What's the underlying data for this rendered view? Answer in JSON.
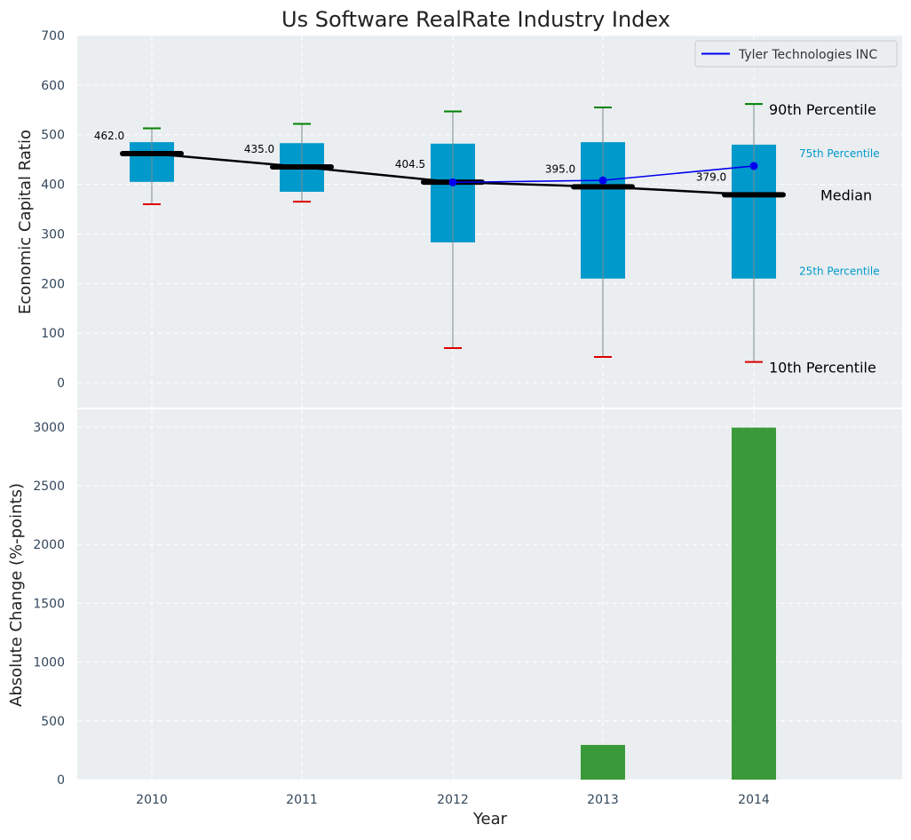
{
  "chart_data": [
    {
      "type": "box",
      "title": "Us Software RealRate Industry Index",
      "ylabel": "Economic Capital Ratio",
      "ylim": [
        -50,
        700
      ],
      "yticks": [
        0,
        100,
        200,
        300,
        400,
        500,
        600,
        700
      ],
      "grid": true,
      "legend": {
        "position": "top-right",
        "entries": [
          "Tyler Technologies INC"
        ]
      },
      "categories": [
        "2010",
        "2011",
        "2012",
        "2013",
        "2014"
      ],
      "p10": [
        360,
        365,
        70,
        52,
        42
      ],
      "p25": [
        405,
        385,
        283,
        210,
        210
      ],
      "median": [
        462.0,
        435.0,
        404.5,
        395.0,
        379.0
      ],
      "median_labels": [
        "462.0",
        "435.0",
        "404.5",
        "395.0",
        "379.0"
      ],
      "p75": [
        485,
        483,
        482,
        485,
        480
      ],
      "p90": [
        513,
        522,
        547,
        555,
        562
      ],
      "series": [
        {
          "name": "Tyler Technologies INC",
          "x": [
            "2012",
            "2013",
            "2014"
          ],
          "values": [
            404,
            408,
            437
          ],
          "color": "#0000ee"
        }
      ],
      "annotations": {
        "p90": "90th Percentile",
        "p75": "75th Percentile",
        "median": "Median",
        "p25": "25th Percentile",
        "p10": "10th Percentile"
      },
      "colors": {
        "box": "#0099cc",
        "median": "#000000",
        "p90_cap": "#008000",
        "p10_cap": "#dd0000",
        "background": "#eaeef0"
      }
    },
    {
      "type": "bar",
      "xlabel": "Year",
      "ylabel": "Absolute Change (%-points)",
      "ylim": [
        0,
        3150
      ],
      "yticks": [
        0,
        500,
        1000,
        1500,
        2000,
        2500,
        3000
      ],
      "grid": true,
      "categories": [
        "2010",
        "2011",
        "2012",
        "2013",
        "2014"
      ],
      "values": [
        0,
        0,
        0,
        295,
        2995
      ],
      "colors": {
        "bar": "#3a9a3a",
        "background": "#eaeef0"
      }
    }
  ]
}
